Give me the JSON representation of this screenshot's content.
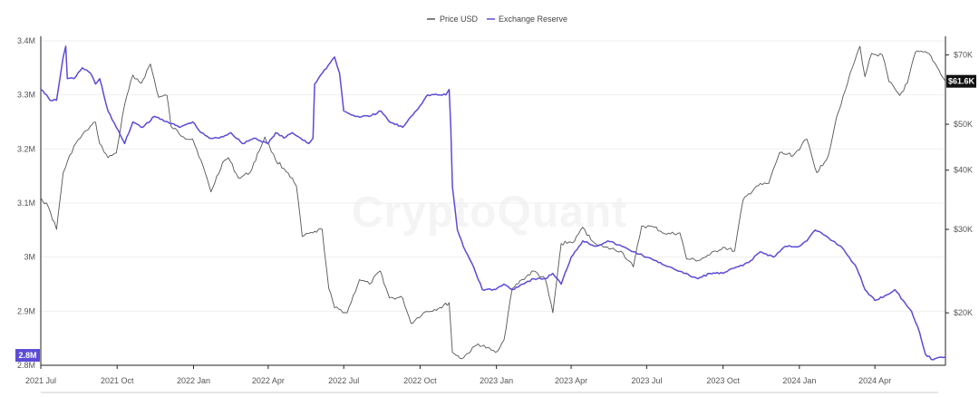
{
  "watermark": "CryptoQuant",
  "chart_data": {
    "type": "line",
    "title": "",
    "legend": {
      "placement": "top-center",
      "entries": [
        {
          "name": "Price USD",
          "color": "#555555"
        },
        {
          "name": "Exchange Reserve",
          "color": "#5b4bd6"
        }
      ]
    },
    "x_axis": {
      "ticks": [
        "2021 Jul",
        "2021 Oct",
        "2022 Jan",
        "2022 Apr",
        "2022 Jul",
        "2022 Oct",
        "2023 Jan",
        "2023 Apr",
        "2023 Jul",
        "2023 Oct",
        "2024 Jan",
        "2024 Apr"
      ],
      "range": [
        "2021-07-01",
        "2024-06-25"
      ]
    },
    "y_left": {
      "label": "",
      "ticks": [
        "3.4M",
        "3.3M",
        "3.2M",
        "3.1M",
        "3M",
        "2.9M",
        "2.8M"
      ],
      "range": [
        2.8,
        3.4
      ],
      "current_label": "2.8M",
      "current_color": "#5b4bd6"
    },
    "y_right": {
      "label": "",
      "scale": "log",
      "ticks": [
        {
          "label": "$70K",
          "value": 70000
        },
        {
          "label": "$50K",
          "value": 50000
        },
        {
          "label": "$40K",
          "value": 40000
        },
        {
          "label": "$30K",
          "value": 30000
        },
        {
          "label": "$20K",
          "value": 20000
        }
      ],
      "range": [
        15500,
        75000
      ],
      "current_label": "$61.6K",
      "current_value": 61600
    },
    "grid": "horizontal",
    "series": [
      {
        "name": "Price USD",
        "axis": "right",
        "color": "#555555",
        "points": [
          [
            "2021-07-01",
            35000
          ],
          [
            "2021-07-10",
            33500
          ],
          [
            "2021-07-20",
            30000
          ],
          [
            "2021-07-28",
            39500
          ],
          [
            "2021-08-10",
            45000
          ],
          [
            "2021-08-25",
            48500
          ],
          [
            "2021-09-05",
            50500
          ],
          [
            "2021-09-10",
            45500
          ],
          [
            "2021-09-20",
            42500
          ],
          [
            "2021-09-30",
            43500
          ],
          [
            "2021-10-10",
            55000
          ],
          [
            "2021-10-20",
            63500
          ],
          [
            "2021-10-30",
            61000
          ],
          [
            "2021-11-10",
            67000
          ],
          [
            "2021-11-20",
            57000
          ],
          [
            "2021-11-30",
            57500
          ],
          [
            "2021-12-05",
            49500
          ],
          [
            "2021-12-20",
            47000
          ],
          [
            "2021-12-31",
            46500
          ],
          [
            "2022-01-10",
            42000
          ],
          [
            "2022-01-22",
            36000
          ],
          [
            "2022-02-05",
            41500
          ],
          [
            "2022-02-12",
            42500
          ],
          [
            "2022-02-24",
            38500
          ],
          [
            "2022-03-10",
            39500
          ],
          [
            "2022-03-28",
            47000
          ],
          [
            "2022-04-10",
            42000
          ],
          [
            "2022-04-25",
            39500
          ],
          [
            "2022-05-05",
            37000
          ],
          [
            "2022-05-12",
            29000
          ],
          [
            "2022-05-25",
            29500
          ],
          [
            "2022-06-05",
            30000
          ],
          [
            "2022-06-13",
            22500
          ],
          [
            "2022-06-20",
            20500
          ],
          [
            "2022-07-05",
            20000
          ],
          [
            "2022-07-20",
            23500
          ],
          [
            "2022-08-01",
            23000
          ],
          [
            "2022-08-14",
            24500
          ],
          [
            "2022-08-25",
            21500
          ],
          [
            "2022-09-10",
            21500
          ],
          [
            "2022-09-20",
            19000
          ],
          [
            "2022-10-05",
            20000
          ],
          [
            "2022-10-25",
            20500
          ],
          [
            "2022-11-05",
            21000
          ],
          [
            "2022-11-09",
            16500
          ],
          [
            "2022-11-20",
            16000
          ],
          [
            "2022-12-10",
            17200
          ],
          [
            "2022-12-31",
            16500
          ],
          [
            "2023-01-10",
            17500
          ],
          [
            "2023-01-20",
            22500
          ],
          [
            "2023-02-01",
            23500
          ],
          [
            "2023-02-15",
            24500
          ],
          [
            "2023-03-01",
            23500
          ],
          [
            "2023-03-10",
            20000
          ],
          [
            "2023-03-20",
            28000
          ],
          [
            "2023-04-05",
            28300
          ],
          [
            "2023-04-15",
            30300
          ],
          [
            "2023-04-25",
            28500
          ],
          [
            "2023-05-10",
            27500
          ],
          [
            "2023-05-31",
            27000
          ],
          [
            "2023-06-15",
            25000
          ],
          [
            "2023-06-25",
            30500
          ],
          [
            "2023-07-10",
            30300
          ],
          [
            "2023-07-25",
            29300
          ],
          [
            "2023-08-10",
            29500
          ],
          [
            "2023-08-18",
            26000
          ],
          [
            "2023-09-01",
            25800
          ],
          [
            "2023-09-15",
            26500
          ],
          [
            "2023-10-01",
            27500
          ],
          [
            "2023-10-15",
            27000
          ],
          [
            "2023-10-25",
            34500
          ],
          [
            "2023-11-10",
            37000
          ],
          [
            "2023-11-25",
            37500
          ],
          [
            "2023-12-08",
            43500
          ],
          [
            "2023-12-25",
            43000
          ],
          [
            "2024-01-10",
            46500
          ],
          [
            "2024-01-22",
            39500
          ],
          [
            "2024-02-05",
            43000
          ],
          [
            "2024-02-15",
            52000
          ],
          [
            "2024-02-28",
            61000
          ],
          [
            "2024-03-05",
            66000
          ],
          [
            "2024-03-14",
            73000
          ],
          [
            "2024-03-20",
            63000
          ],
          [
            "2024-03-28",
            70500
          ],
          [
            "2024-04-10",
            70000
          ],
          [
            "2024-04-18",
            61500
          ],
          [
            "2024-05-01",
            57500
          ],
          [
            "2024-05-10",
            61000
          ],
          [
            "2024-05-20",
            71000
          ],
          [
            "2024-06-05",
            70500
          ],
          [
            "2024-06-15",
            66000
          ],
          [
            "2024-06-25",
            61600
          ]
        ]
      },
      {
        "name": "Exchange Reserve",
        "axis": "left",
        "color": "#5b4bd6",
        "points": [
          [
            "2021-07-01",
            3.31
          ],
          [
            "2021-07-08",
            3.3
          ],
          [
            "2021-07-12",
            3.29
          ],
          [
            "2021-07-20",
            3.29
          ],
          [
            "2021-07-24",
            3.33
          ],
          [
            "2021-07-28",
            3.37
          ],
          [
            "2021-07-31",
            3.39
          ],
          [
            "2021-08-02",
            3.33
          ],
          [
            "2021-08-10",
            3.33
          ],
          [
            "2021-08-20",
            3.35
          ],
          [
            "2021-08-30",
            3.34
          ],
          [
            "2021-09-05",
            3.32
          ],
          [
            "2021-09-10",
            3.33
          ],
          [
            "2021-09-20",
            3.27
          ],
          [
            "2021-09-30",
            3.24
          ],
          [
            "2021-10-10",
            3.21
          ],
          [
            "2021-10-20",
            3.25
          ],
          [
            "2021-11-01",
            3.24
          ],
          [
            "2021-11-15",
            3.26
          ],
          [
            "2021-12-01",
            3.25
          ],
          [
            "2021-12-15",
            3.24
          ],
          [
            "2021-12-31",
            3.25
          ],
          [
            "2022-01-10",
            3.23
          ],
          [
            "2022-01-20",
            3.22
          ],
          [
            "2022-02-01",
            3.22
          ],
          [
            "2022-02-15",
            3.23
          ],
          [
            "2022-03-01",
            3.21
          ],
          [
            "2022-03-15",
            3.22
          ],
          [
            "2022-04-01",
            3.21
          ],
          [
            "2022-04-10",
            3.23
          ],
          [
            "2022-04-20",
            3.22
          ],
          [
            "2022-04-30",
            3.23
          ],
          [
            "2022-05-10",
            3.22
          ],
          [
            "2022-05-20",
            3.21
          ],
          [
            "2022-05-25",
            3.22
          ],
          [
            "2022-05-27",
            3.32
          ],
          [
            "2022-06-05",
            3.34
          ],
          [
            "2022-06-15",
            3.36
          ],
          [
            "2022-06-20",
            3.37
          ],
          [
            "2022-06-26",
            3.34
          ],
          [
            "2022-07-01",
            3.27
          ],
          [
            "2022-07-15",
            3.26
          ],
          [
            "2022-08-01",
            3.26
          ],
          [
            "2022-08-15",
            3.27
          ],
          [
            "2022-08-25",
            3.25
          ],
          [
            "2022-09-10",
            3.24
          ],
          [
            "2022-09-20",
            3.26
          ],
          [
            "2022-10-01",
            3.28
          ],
          [
            "2022-10-10",
            3.3
          ],
          [
            "2022-10-25",
            3.3
          ],
          [
            "2022-11-01",
            3.3
          ],
          [
            "2022-11-05",
            3.31
          ],
          [
            "2022-11-07",
            3.24
          ],
          [
            "2022-11-09",
            3.13
          ],
          [
            "2022-11-15",
            3.05
          ],
          [
            "2022-11-22",
            3.02
          ],
          [
            "2022-12-05",
            2.98
          ],
          [
            "2022-12-15",
            2.94
          ],
          [
            "2022-12-31",
            2.94
          ],
          [
            "2023-01-10",
            2.95
          ],
          [
            "2023-01-20",
            2.94
          ],
          [
            "2023-02-01",
            2.95
          ],
          [
            "2023-02-15",
            2.96
          ],
          [
            "2023-03-01",
            2.96
          ],
          [
            "2023-03-10",
            2.97
          ],
          [
            "2023-03-20",
            2.95
          ],
          [
            "2023-04-01",
            3.0
          ],
          [
            "2023-04-15",
            3.03
          ],
          [
            "2023-05-01",
            3.02
          ],
          [
            "2023-05-15",
            3.03
          ],
          [
            "2023-06-01",
            3.02
          ],
          [
            "2023-06-15",
            3.01
          ],
          [
            "2023-07-01",
            3.0
          ],
          [
            "2023-07-15",
            2.99
          ],
          [
            "2023-08-01",
            2.98
          ],
          [
            "2023-08-15",
            2.97
          ],
          [
            "2023-09-01",
            2.96
          ],
          [
            "2023-09-15",
            2.97
          ],
          [
            "2023-10-01",
            2.97
          ],
          [
            "2023-10-15",
            2.98
          ],
          [
            "2023-11-01",
            2.99
          ],
          [
            "2023-11-15",
            3.01
          ],
          [
            "2023-12-01",
            3.0
          ],
          [
            "2023-12-15",
            3.02
          ],
          [
            "2024-01-01",
            3.02
          ],
          [
            "2024-01-10",
            3.03
          ],
          [
            "2024-01-20",
            3.05
          ],
          [
            "2024-02-01",
            3.04
          ],
          [
            "2024-02-10",
            3.03
          ],
          [
            "2024-02-20",
            3.02
          ],
          [
            "2024-03-01",
            3.0
          ],
          [
            "2024-03-10",
            2.98
          ],
          [
            "2024-03-20",
            2.94
          ],
          [
            "2024-04-01",
            2.92
          ],
          [
            "2024-04-15",
            2.93
          ],
          [
            "2024-04-25",
            2.94
          ],
          [
            "2024-05-05",
            2.92
          ],
          [
            "2024-05-15",
            2.9
          ],
          [
            "2024-05-25",
            2.86
          ],
          [
            "2024-06-01",
            2.82
          ],
          [
            "2024-06-10",
            2.81
          ],
          [
            "2024-06-20",
            2.815
          ],
          [
            "2024-06-25",
            2.815
          ]
        ]
      }
    ]
  }
}
